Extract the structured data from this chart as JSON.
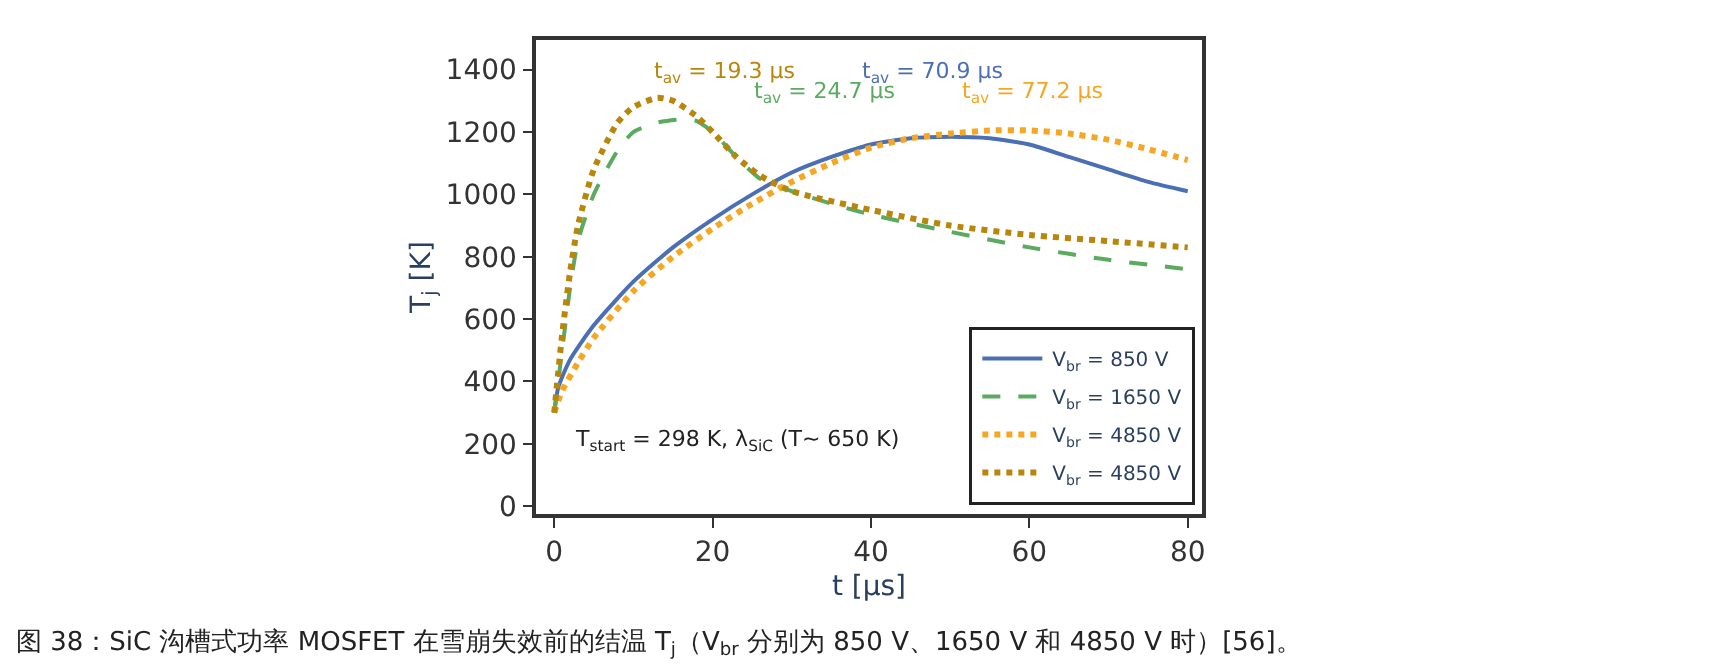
{
  "chart_data": {
    "type": "line",
    "xlabel": "t [μs]",
    "ylabel": "T$_{j}$ [K]",
    "xlim": [
      -2.3,
      81.8
    ],
    "ylim": [
      -25,
      1495
    ],
    "xticks": [
      0,
      20,
      40,
      60,
      80
    ],
    "yticks": [
      0,
      200,
      400,
      600,
      800,
      1000,
      1200,
      1400
    ],
    "legend": "bottom right",
    "series": [
      {
        "name": "V$_{br}$ = 850 V",
        "color": "#4a6fb5",
        "line_style": "solid",
        "x": [
          0,
          0.5,
          2,
          5,
          10,
          15,
          20,
          25,
          30,
          35,
          40,
          45,
          50,
          55,
          60,
          65,
          70,
          75,
          80
        ],
        "values": [
          300,
          380,
          470,
          580,
          720,
          830,
          920,
          1000,
          1070,
          1120,
          1160,
          1180,
          1185,
          1180,
          1160,
          1120,
          1080,
          1040,
          1010
        ]
      },
      {
        "name": "V$_{br}$ = 1650 V",
        "color": "#5aaa5f",
        "line_style": "dashed",
        "x": [
          0,
          1,
          2,
          3,
          5,
          8,
          10,
          13,
          16,
          18,
          20,
          23,
          26,
          30,
          35,
          40,
          50,
          60,
          70,
          80
        ],
        "values": [
          300,
          500,
          700,
          850,
          1000,
          1140,
          1200,
          1230,
          1240,
          1235,
          1200,
          1120,
          1050,
          1010,
          970,
          935,
          880,
          830,
          790,
          760
        ]
      },
      {
        "name": "V$_{br}$ = 4850 V",
        "color": "#f5a623",
        "line_style": "dotted",
        "x": [
          0,
          1,
          3,
          5,
          10,
          15,
          20,
          25,
          30,
          35,
          40,
          45,
          50,
          55,
          60,
          65,
          70,
          75,
          80
        ],
        "values": [
          300,
          370,
          460,
          540,
          690,
          800,
          890,
          970,
          1040,
          1100,
          1150,
          1180,
          1195,
          1205,
          1205,
          1195,
          1175,
          1145,
          1110
        ]
      },
      {
        "name": "V$_{br}$ = 4850 V",
        "color": "#b8860b",
        "line_style": "dotted",
        "x": [
          0,
          1,
          2,
          3,
          5,
          8,
          10,
          13,
          15,
          18,
          20,
          23,
          26,
          30,
          40,
          50,
          60,
          70,
          80
        ],
        "values": [
          300,
          550,
          750,
          900,
          1080,
          1230,
          1280,
          1310,
          1300,
          1250,
          1200,
          1120,
          1060,
          1010,
          950,
          900,
          870,
          850,
          830
        ]
      }
    ],
    "annotations": [
      "t$_{av}$ = 19.3 μs",
      "t$_{av}$ = 24.7 μs",
      "t$_{av}$ = 70.9 μs",
      "t$_{av}$ = 77.2 μs",
      "T$_{start}$ = 298 K, λ$_{SiC}$ (T~ 650 K)",
      "图 38：SiC 沟槽式功率 MOSFET 在雪崩失效前的结温 T$_{j}$（V$_{br}$ 分别为 850 V、1650 V 和 4850 V 时）[56]。"
    ]
  }
}
